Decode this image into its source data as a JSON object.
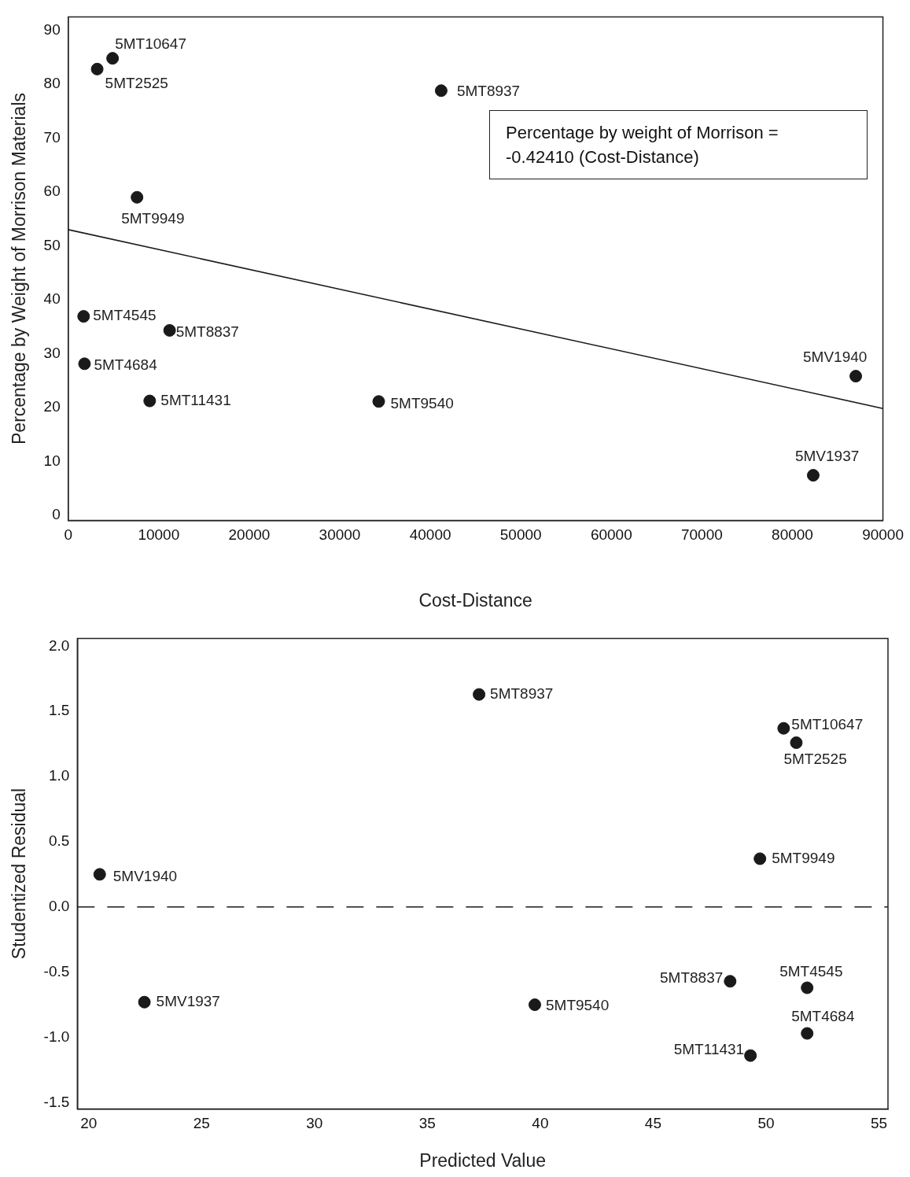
{
  "chart_data": [
    {
      "type": "scatter",
      "xlabel": "Cost-Distance",
      "ylabel": "Percentage by Weight of Morrison Materials",
      "xlim": [
        0,
        90000
      ],
      "ylim": [
        -1,
        92.5
      ],
      "xticks": [
        0,
        10000,
        20000,
        30000,
        40000,
        50000,
        60000,
        70000,
        80000,
        90000
      ],
      "yticks": [
        0,
        10,
        20,
        30,
        40,
        50,
        60,
        70,
        80,
        90
      ],
      "grid": false,
      "legend": false,
      "marker": "circle",
      "series": [
        {
          "type": "scatter",
          "color": "#1a1a1a",
          "x": [
            4900,
            3200,
            41200,
            7600,
            1700,
            11200,
            1800,
            9000,
            34300,
            87000,
            82300
          ],
          "values": [
            84.8,
            82.8,
            78.8,
            59,
            36.9,
            34.3,
            28.1,
            21.2,
            21.1,
            25.8,
            7.4
          ]
        },
        {
          "type": "line",
          "color": "#1a1a1a",
          "marker": "none",
          "x": [
            0,
            90000
          ],
          "values": [
            53,
            19.8
          ]
        }
      ],
      "annotations": [
        {
          "text": "5MT10647",
          "x": 4900,
          "y": 84.8
        },
        {
          "text": "5MT2525",
          "x": 3200,
          "y": 82.8
        },
        {
          "text": "5MT8937",
          "x": 41200,
          "y": 78.8
        },
        {
          "text": "5MT9949",
          "x": 7600,
          "y": 59
        },
        {
          "text": "5MT4545",
          "x": 1700,
          "y": 36.9
        },
        {
          "text": "5MT8837",
          "x": 11200,
          "y": 34.3
        },
        {
          "text": "5MT4684",
          "x": 1800,
          "y": 28.1
        },
        {
          "text": "5MT11431",
          "x": 9000,
          "y": 21.2
        },
        {
          "text": "5MT9540",
          "x": 34300,
          "y": 21.1
        },
        {
          "text": "5MV1940",
          "x": 87000,
          "y": 25.8
        },
        {
          "text": "5MV1937",
          "x": 82300,
          "y": 7.4
        },
        "Percentage by weight of Morrison = -0.42410 (Cost-Distance)"
      ]
    },
    {
      "type": "scatter",
      "xlabel": "Predicted Value",
      "ylabel": "Studentized Residual",
      "xlim": [
        19.5,
        55.4
      ],
      "ylim": [
        -1.55,
        2.06
      ],
      "xticks": [
        20,
        25,
        30,
        35,
        40,
        45,
        50,
        55
      ],
      "yticks": [
        {
          "value": -1.5,
          "label": "-1.5"
        },
        {
          "value": -1,
          "label": "-1.0"
        },
        {
          "value": -0.5,
          "label": "-0.5"
        },
        {
          "value": 0,
          "label": "0.0"
        },
        {
          "value": 0.5,
          "label": "0.5"
        },
        {
          "value": 1,
          "label": "1.0"
        },
        {
          "value": 1.5,
          "label": "1.5"
        },
        {
          "value": 2,
          "label": "2.0"
        }
      ],
      "grid": false,
      "legend": false,
      "marker": "circle",
      "series": [
        {
          "type": "scatter",
          "color": "#1a1a1a",
          "x": [
            50.78,
            51.34,
            37.29,
            49.73,
            51.82,
            48.41,
            51.82,
            49.31,
            39.76,
            20.49,
            22.47
          ],
          "values": [
            1.37,
            1.26,
            1.63,
            0.37,
            -0.62,
            -0.57,
            -0.97,
            -1.14,
            -0.75,
            0.25,
            -0.73
          ]
        }
      ],
      "ref_lines": [
        {
          "axis": "y",
          "value": 0,
          "color": "#1a1a1a",
          "line_style": "dashed"
        }
      ],
      "annotations": [
        {
          "text": "5MT10647",
          "x": 50.78,
          "y": 1.37
        },
        {
          "text": "5MT2525",
          "x": 51.34,
          "y": 1.26
        },
        {
          "text": "5MT8937",
          "x": 37.29,
          "y": 1.63
        },
        {
          "text": "5MT9949",
          "x": 49.73,
          "y": 0.37
        },
        {
          "text": "5MT4545",
          "x": 51.82,
          "y": -0.62
        },
        {
          "text": "5MT8837",
          "x": 48.41,
          "y": -0.57
        },
        {
          "text": "5MT4684",
          "x": 51.82,
          "y": -0.97
        },
        {
          "text": "5MT11431",
          "x": 49.31,
          "y": -1.14
        },
        {
          "text": "5MT9540",
          "x": 39.76,
          "y": -0.75
        },
        {
          "text": "5MV1940",
          "x": 20.49,
          "y": 0.25
        },
        {
          "text": "5MV1937",
          "x": 22.47,
          "y": -0.73
        }
      ]
    }
  ]
}
